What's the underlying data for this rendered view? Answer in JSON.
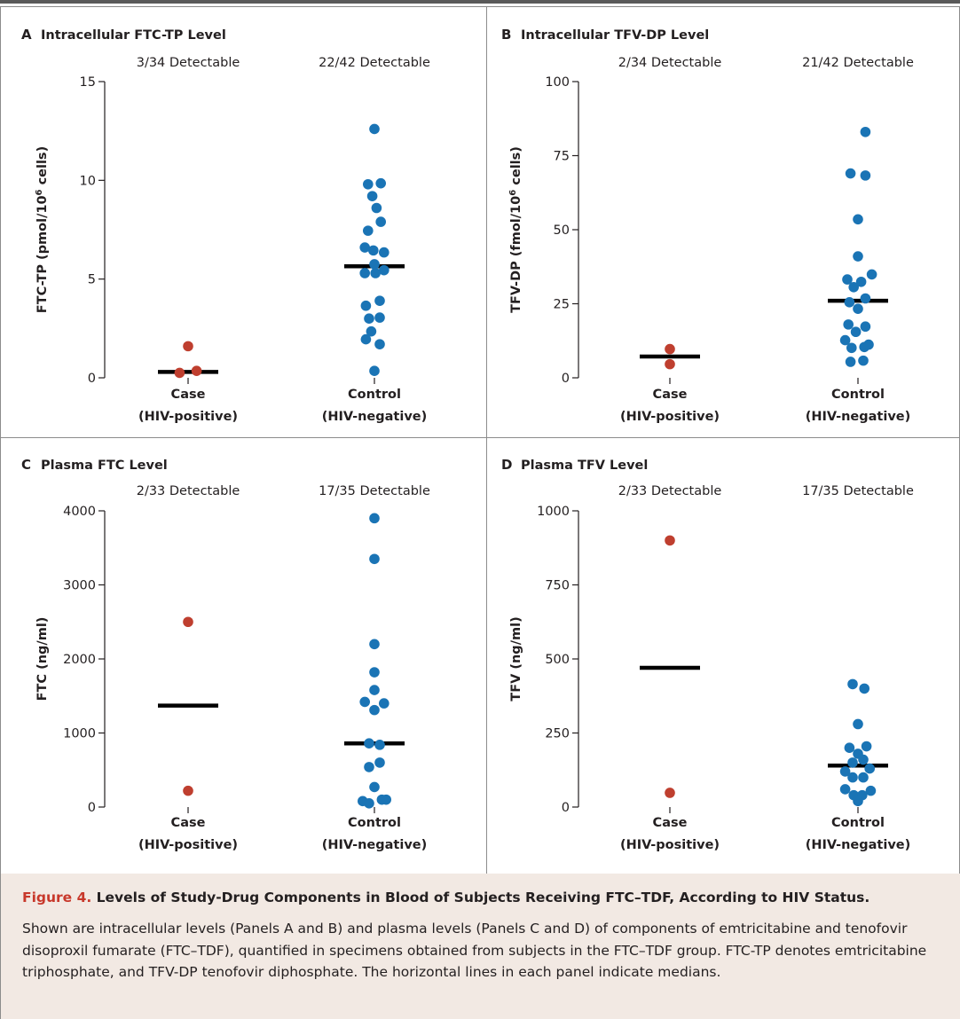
{
  "caption": {
    "figure_label": "Figure 4.",
    "title": "Levels of Study-Drug Components in Blood of Subjects Receiving FTC–TDF, According to HIV Status.",
    "body": "Shown are intracellular levels (Panels A and B) and plasma levels (Panels C and D) of components of emtricitabine and tenofovir disoproxil fumarate (FTC–TDF), quantified in specimens obtained from subjects in the FTC–TDF group. FTC-TP denotes emtricitabine triphosphate, and TFV-DP tenofovir diphosphate. The horizontal lines in each panel indicate medians."
  },
  "colors": {
    "case": "#bf3f2f",
    "control": "#1a74b5",
    "median": "#000000",
    "axis": "#231f20",
    "divider": "#8c8c8c",
    "caption_bg": "#f2e9e3",
    "caption_accent": "#c8382b"
  },
  "chart_data": [
    {
      "panel": "A",
      "type": "scatter",
      "title": "Intracellular FTC-TP Level",
      "ylabel_parts": [
        "FTC-TP (pmol/10",
        "6",
        " cells)"
      ],
      "ylim": [
        0,
        15
      ],
      "yticks": [
        0,
        5,
        10,
        15
      ],
      "categories": [
        "Case (HIV-positive)",
        "Control (HIV-negative)"
      ],
      "category_labels": [
        [
          "Case",
          "(HIV-positive)"
        ],
        [
          "Control",
          "(HIV-negative)"
        ]
      ],
      "detectable": [
        "3/34 Detectable",
        "22/42 Detectable"
      ],
      "series": [
        {
          "name": "Case",
          "color_key": "case",
          "x_index": 0,
          "points": [
            [
              0,
              1.6
            ],
            [
              -0.08,
              0.25
            ],
            [
              0.08,
              0.35
            ]
          ],
          "median": 0.3
        },
        {
          "name": "Control",
          "color_key": "control",
          "x_index": 1,
          "points": [
            [
              0,
              12.6
            ],
            [
              -0.06,
              9.8
            ],
            [
              0.06,
              9.85
            ],
            [
              -0.02,
              9.2
            ],
            [
              0.02,
              8.6
            ],
            [
              0.06,
              7.9
            ],
            [
              -0.06,
              7.45
            ],
            [
              -0.09,
              6.6
            ],
            [
              -0.01,
              6.45
            ],
            [
              0.09,
              6.35
            ],
            [
              0.0,
              5.75
            ],
            [
              -0.09,
              5.3
            ],
            [
              0.09,
              5.45
            ],
            [
              0.05,
              3.9
            ],
            [
              -0.08,
              3.65
            ],
            [
              -0.05,
              3.0
            ],
            [
              0.05,
              3.05
            ],
            [
              -0.03,
              2.35
            ],
            [
              -0.08,
              1.95
            ],
            [
              0.05,
              1.7
            ],
            [
              0.0,
              0.35
            ],
            [
              0.01,
              5.3
            ]
          ],
          "median": 5.65
        }
      ]
    },
    {
      "panel": "B",
      "type": "scatter",
      "title": "Intracellular TFV-DP Level",
      "ylabel_parts": [
        "TFV-DP (fmol/10",
        "6",
        " cells)"
      ],
      "ylim": [
        0,
        100
      ],
      "yticks": [
        0,
        25,
        50,
        75,
        100
      ],
      "categories": [
        "Case (HIV-positive)",
        "Control (HIV-negative)"
      ],
      "category_labels": [
        [
          "Case",
          "(HIV-positive)"
        ],
        [
          "Control",
          "(HIV-negative)"
        ]
      ],
      "detectable": [
        "2/34 Detectable",
        "21/42 Detectable"
      ],
      "series": [
        {
          "name": "Case",
          "color_key": "case",
          "x_index": 0,
          "points": [
            [
              0,
              9.7
            ],
            [
              0,
              4.6
            ]
          ],
          "median": 7.2
        },
        {
          "name": "Control",
          "color_key": "control",
          "x_index": 1,
          "points": [
            [
              0.07,
              83
            ],
            [
              -0.07,
              69
            ],
            [
              0.07,
              68.3
            ],
            [
              0,
              53.5
            ],
            [
              0,
              41
            ],
            [
              -0.1,
              33.2
            ],
            [
              0.13,
              34.9
            ],
            [
              0.03,
              32.4
            ],
            [
              -0.04,
              30.6
            ],
            [
              -0.08,
              25.5
            ],
            [
              0.07,
              26.8
            ],
            [
              0.0,
              23.3
            ],
            [
              -0.09,
              18
            ],
            [
              0.07,
              17.3
            ],
            [
              -0.02,
              15.5
            ],
            [
              -0.12,
              12.7
            ],
            [
              -0.06,
              10.1
            ],
            [
              0.06,
              10.4
            ],
            [
              0.1,
              11.2
            ],
            [
              -0.07,
              5.4
            ],
            [
              0.05,
              5.8
            ]
          ],
          "median": 26
        }
      ]
    },
    {
      "panel": "C",
      "type": "scatter",
      "title": "Plasma FTC Level",
      "ylabel_parts": [
        "FTC (ng/ml)"
      ],
      "ylim": [
        0,
        4000
      ],
      "yticks": [
        0,
        1000,
        2000,
        3000,
        4000
      ],
      "categories": [
        "Case (HIV-positive)",
        "Control (HIV-negative)"
      ],
      "category_labels": [
        [
          "Case",
          "(HIV-positive)"
        ],
        [
          "Control",
          "(HIV-negative)"
        ]
      ],
      "detectable": [
        "2/33 Detectable",
        "17/35 Detectable"
      ],
      "series": [
        {
          "name": "Case",
          "color_key": "case",
          "x_index": 0,
          "points": [
            [
              0,
              2500
            ],
            [
              0,
              220
            ]
          ],
          "median": 1370
        },
        {
          "name": "Control",
          "color_key": "control",
          "x_index": 1,
          "points": [
            [
              0,
              3900
            ],
            [
              0,
              3350
            ],
            [
              0,
              2200
            ],
            [
              0,
              1820
            ],
            [
              0,
              1580
            ],
            [
              -0.09,
              1420
            ],
            [
              0.09,
              1400
            ],
            [
              0,
              1310
            ],
            [
              -0.05,
              860
            ],
            [
              0.05,
              840
            ],
            [
              0.05,
              600
            ],
            [
              -0.05,
              540
            ],
            [
              0,
              270
            ],
            [
              0.11,
              100
            ],
            [
              -0.11,
              80
            ],
            [
              0.07,
              100
            ],
            [
              -0.05,
              50
            ]
          ],
          "median": 860
        }
      ]
    },
    {
      "panel": "D",
      "type": "scatter",
      "title": "Plasma TFV Level",
      "ylabel_parts": [
        "TFV (ng/ml)"
      ],
      "ylim": [
        0,
        1000
      ],
      "yticks": [
        0,
        250,
        500,
        750,
        1000
      ],
      "categories": [
        "Case (HIV-positive)",
        "Control (HIV-negative)"
      ],
      "category_labels": [
        [
          "Case",
          "(HIV-positive)"
        ],
        [
          "Control",
          "(HIV-negative)"
        ]
      ],
      "detectable": [
        "2/33 Detectable",
        "17/35 Detectable"
      ],
      "series": [
        {
          "name": "Case",
          "color_key": "case",
          "x_index": 0,
          "points": [
            [
              0,
              900
            ],
            [
              0,
              48
            ]
          ],
          "median": 470
        },
        {
          "name": "Control",
          "color_key": "control",
          "x_index": 1,
          "points": [
            [
              -0.05,
              415
            ],
            [
              0.06,
              400
            ],
            [
              0.0,
              280
            ],
            [
              -0.08,
              200
            ],
            [
              0.08,
              205
            ],
            [
              0.0,
              180
            ],
            [
              -0.05,
              150
            ],
            [
              0.05,
              160
            ],
            [
              -0.12,
              120
            ],
            [
              0.11,
              130
            ],
            [
              -0.05,
              100
            ],
            [
              0.05,
              100
            ],
            [
              -0.12,
              60
            ],
            [
              0.12,
              55
            ],
            [
              -0.04,
              40
            ],
            [
              0.04,
              40
            ],
            [
              0.0,
              20
            ]
          ],
          "median": 140
        }
      ]
    }
  ]
}
